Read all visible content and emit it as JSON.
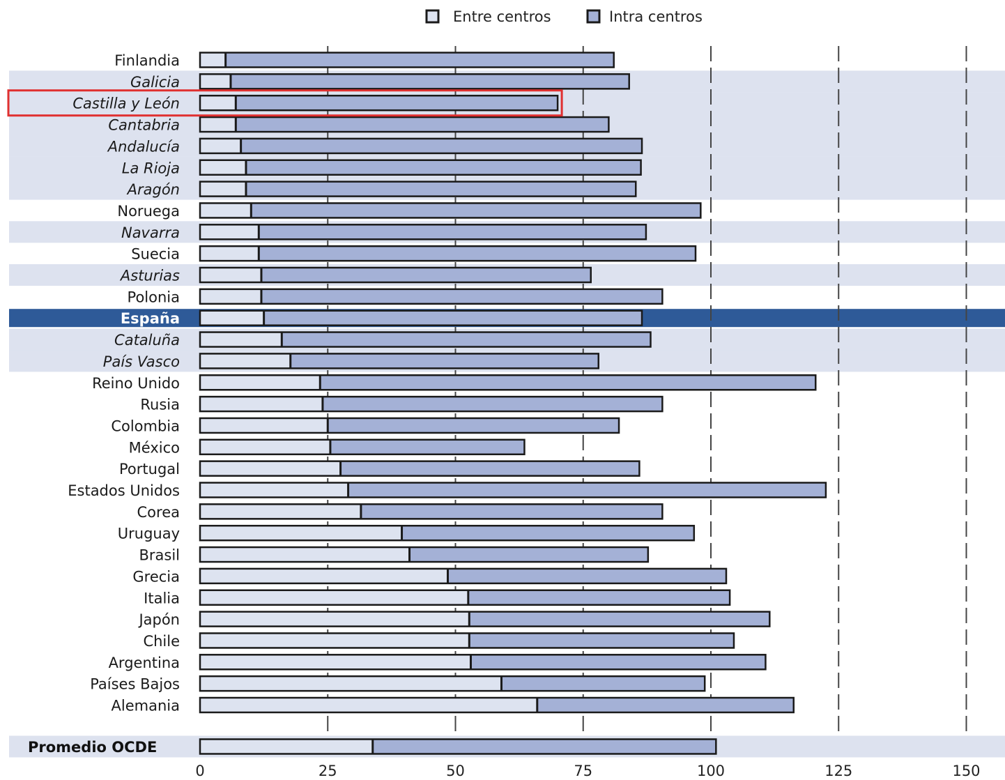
{
  "legend": {
    "entre_label": "Entre centros",
    "intra_label": "Intra centros"
  },
  "colors": {
    "entre": "#dde3f0",
    "intra": "#a4b1d6",
    "region_band": "#dde2ef",
    "spain_band": "#2e5a98",
    "highlight_box": "#e03030",
    "bar_outline": "#1a1a1a"
  },
  "chart_data": {
    "type": "bar",
    "orientation": "horizontal",
    "stacked": true,
    "xlim": [
      0,
      150
    ],
    "x_ticks": [
      "0",
      "25",
      "50",
      "75",
      "100",
      "125",
      "150"
    ],
    "grid": "dashed-vertical",
    "legend_position": "top",
    "series": [
      {
        "name": "Entre centros",
        "key": "entre"
      },
      {
        "name": "Intra centros",
        "key": "intra"
      }
    ],
    "rows": [
      {
        "label": "Finlandia",
        "entre": 5,
        "total": 81,
        "style": "country"
      },
      {
        "label": "Galicia",
        "entre": 6,
        "total": 84,
        "style": "region"
      },
      {
        "label": "Castilla y León",
        "entre": 7,
        "total": 70,
        "style": "region",
        "highlight": true
      },
      {
        "label": "Cantabria",
        "entre": 7,
        "total": 80,
        "style": "region"
      },
      {
        "label": "Andalucía",
        "entre": 8,
        "total": 86.5,
        "style": "region"
      },
      {
        "label": "La Rioja",
        "entre": 9,
        "total": 86.3,
        "style": "region"
      },
      {
        "label": "Aragón",
        "entre": 9,
        "total": 85.3,
        "style": "region"
      },
      {
        "label": "Noruega",
        "entre": 10,
        "total": 98,
        "style": "country"
      },
      {
        "label": "Navarra",
        "entre": 11.5,
        "total": 87.3,
        "style": "region"
      },
      {
        "label": "Suecia",
        "entre": 11.5,
        "total": 97,
        "style": "country"
      },
      {
        "label": "Asturias",
        "entre": 12,
        "total": 76.5,
        "style": "region"
      },
      {
        "label": "Polonia",
        "entre": 12,
        "total": 90.5,
        "style": "country"
      },
      {
        "label": "España",
        "entre": 12.5,
        "total": 86.5,
        "style": "spain"
      },
      {
        "label": "Cataluña",
        "entre": 16,
        "total": 88.2,
        "style": "region"
      },
      {
        "label": "País Vasco",
        "entre": 17.7,
        "total": 78,
        "style": "region"
      },
      {
        "label": "Reino Unido",
        "entre": 23.5,
        "total": 120.5,
        "style": "country"
      },
      {
        "label": "Rusia",
        "entre": 24,
        "total": 90.5,
        "style": "country"
      },
      {
        "label": "Colombia",
        "entre": 25,
        "total": 82,
        "style": "country"
      },
      {
        "label": "México",
        "entre": 25.5,
        "total": 63.5,
        "style": "country"
      },
      {
        "label": "Portugal",
        "entre": 27.5,
        "total": 86,
        "style": "country"
      },
      {
        "label": "Estados Unidos",
        "entre": 29,
        "total": 122.5,
        "style": "country"
      },
      {
        "label": "Corea",
        "entre": 31.5,
        "total": 90.5,
        "style": "country"
      },
      {
        "label": "Uruguay",
        "entre": 39.5,
        "total": 96.7,
        "style": "country"
      },
      {
        "label": "Brasil",
        "entre": 41,
        "total": 87.7,
        "style": "country"
      },
      {
        "label": "Grecia",
        "entre": 48.5,
        "total": 103,
        "style": "country"
      },
      {
        "label": "Italia",
        "entre": 52.5,
        "total": 103.7,
        "style": "country"
      },
      {
        "label": "Japón",
        "entre": 52.7,
        "total": 111.5,
        "style": "country"
      },
      {
        "label": "Chile",
        "entre": 52.7,
        "total": 104.5,
        "style": "country"
      },
      {
        "label": "Argentina",
        "entre": 53,
        "total": 110.7,
        "style": "country"
      },
      {
        "label": "Países Bajos",
        "entre": 59,
        "total": 98.8,
        "style": "country"
      },
      {
        "label": "Alemania",
        "entre": 66,
        "total": 116.2,
        "style": "country"
      },
      {
        "label": "Promedio OCDE",
        "entre": 33.8,
        "total": 101,
        "style": "average"
      }
    ]
  }
}
